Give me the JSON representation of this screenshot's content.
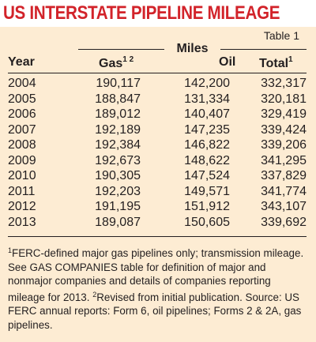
{
  "title": "US INTERSTATE PIPELINE MILEAGE",
  "table_label": "Table 1",
  "group_header": "Miles",
  "headers": {
    "year": "Year",
    "gas": "Gas",
    "gas_sup": "1 2",
    "oil": "Oil",
    "total": "Total",
    "total_sup": "1"
  },
  "rows": [
    {
      "year": "2004",
      "gas": "190,117",
      "oil": "142,200",
      "total": "332,317"
    },
    {
      "year": "2005",
      "gas": "188,847",
      "oil": "131,334",
      "total": "320,181"
    },
    {
      "year": "2006",
      "gas": "189,012",
      "oil": "140,407",
      "total": "329,419"
    },
    {
      "year": "2007",
      "gas": "192,189",
      "oil": "147,235",
      "total": "339,424"
    },
    {
      "year": "2008",
      "gas": "192,384",
      "oil": "146,822",
      "total": "339,206"
    },
    {
      "year": "2009",
      "gas": "192,673",
      "oil": "148,622",
      "total": "341,295"
    },
    {
      "year": "2010",
      "gas": "190,305",
      "oil": "147,524",
      "total": "337,829"
    },
    {
      "year": "2011",
      "gas": "192,203",
      "oil": "149,571",
      "total": "341,774"
    },
    {
      "year": "2012",
      "gas": "191,195",
      "oil": "151,912",
      "total": "343,107"
    },
    {
      "year": "2013",
      "gas": "189,087",
      "oil": "150,605",
      "total": "339,692"
    }
  ],
  "footnote": {
    "sup1": "1",
    "part1": "FERC-defined major gas pipelines only; transmission mileage. See GAS COMPANIES table for definition of major and nonmajor companies and details of companies reporting mileage for 2013. ",
    "sup2": "2",
    "part2": "Revised from initial publication. Source:  US FERC annual reports: Form 6, oil pipelines; Forms 2 & 2A, gas pipelines."
  },
  "colors": {
    "title": "#d2232a",
    "panel_background": "#fdecd3",
    "text": "#231f20"
  }
}
